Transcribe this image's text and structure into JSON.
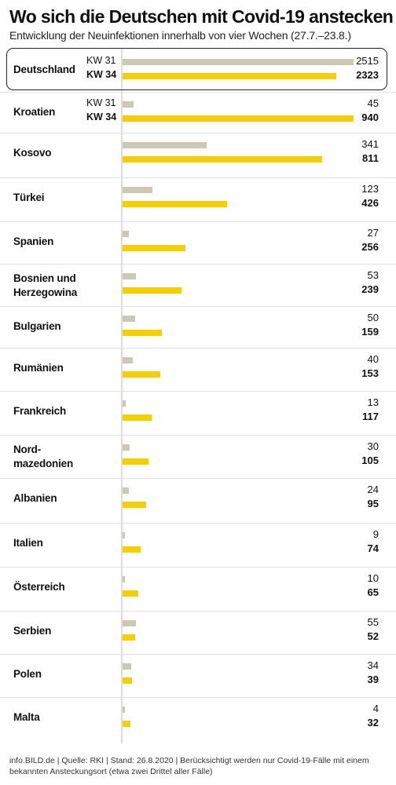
{
  "title": "Wo sich die Deutschen mit Covid-19 anstecken",
  "subtitle": "Entwicklung der Neuinfektionen innerhalb von vier Wochen (27.7.–23.8.)",
  "legend": {
    "prev": "KW 31",
    "curr": "KW 34"
  },
  "colors": {
    "prev": "#cdc8b5",
    "curr": "#f5cf00"
  },
  "footer": "info.BILD.de | Quelle: RKI | Stand: 26.8.2020 | Berücksichtigt werden nur Covid-19-Fälle mit einem bekannten Ansteckungsort (etwa zwei Drittel aller Fälle)",
  "chart_data": {
    "type": "bar",
    "orientation": "horizontal",
    "title": "Wo sich die Deutschen mit Covid-19 anstecken",
    "subtitle": "Entwicklung der Neuinfektionen innerhalb von vier Wochen (27.7.–23.8.)",
    "categories": [
      "Deutschland",
      "Kroatien",
      "Kosovo",
      "Türkei",
      "Spanien",
      "Bosnien und Herzegowina",
      "Bulgarien",
      "Rumänien",
      "Frankreich",
      "Nord-mazedonien",
      "Albanien",
      "Italien",
      "Österreich",
      "Serbien",
      "Polen",
      "Malta"
    ],
    "category_lines": [
      [
        "Deutschland"
      ],
      [
        "Kroatien"
      ],
      [
        "Kosovo"
      ],
      [
        "Türkei"
      ],
      [
        "Spanien"
      ],
      [
        "Bosnien und",
        "Herzegowina"
      ],
      [
        "Bulgarien"
      ],
      [
        "Rumänien"
      ],
      [
        "Frankreich"
      ],
      [
        "Nord-",
        "mazedonien"
      ],
      [
        "Albanien"
      ],
      [
        "Italien"
      ],
      [
        "Österreich"
      ],
      [
        "Serbien"
      ],
      [
        "Polen"
      ],
      [
        "Malta"
      ]
    ],
    "series": [
      {
        "name": "KW 31",
        "values": [
          2515,
          45,
          341,
          123,
          27,
          53,
          50,
          40,
          13,
          30,
          24,
          9,
          10,
          55,
          34,
          4
        ]
      },
      {
        "name": "KW 34",
        "values": [
          2323,
          940,
          811,
          426,
          256,
          239,
          159,
          153,
          117,
          105,
          95,
          74,
          65,
          52,
          39,
          32
        ]
      }
    ],
    "scales": [
      {
        "categories": [
          "Deutschland"
        ],
        "max": 2515
      },
      {
        "categories": [
          "Kroatien",
          "Kosovo",
          "Türkei",
          "Spanien",
          "Bosnien und Herzegowina",
          "Bulgarien",
          "Rumänien",
          "Frankreich",
          "Nord-mazedonien",
          "Albanien",
          "Italien",
          "Österreich",
          "Serbien",
          "Polen",
          "Malta"
        ],
        "max": 940
      }
    ],
    "kw_labels_shown_for": [
      "Deutschland",
      "Kroatien"
    ],
    "highlighted_category": "Deutschland",
    "grid": false
  }
}
